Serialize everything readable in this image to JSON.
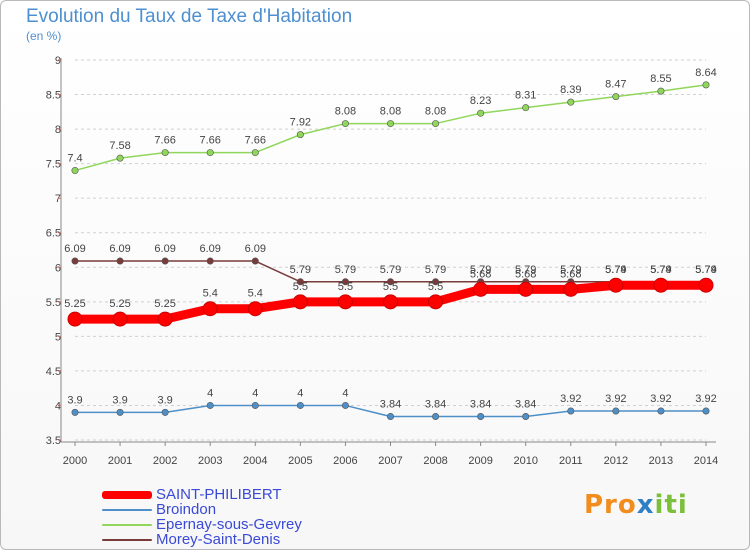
{
  "chart_data": {
    "type": "line",
    "title": "Evolution du Taux de Taxe d'Habitation",
    "subtitle": "(en %)",
    "x": [
      "2000",
      "2001",
      "2002",
      "2003",
      "2004",
      "2005",
      "2006",
      "2007",
      "2008",
      "2009",
      "2010",
      "2011",
      "2012",
      "2013",
      "2014"
    ],
    "ylim": [
      3.5,
      9
    ],
    "yticks": [
      "3.5",
      "4",
      "4.5",
      "5",
      "5.5",
      "6",
      "6.5",
      "7",
      "7.5",
      "8",
      "8.5",
      "9"
    ],
    "grid": "horizontal dashed",
    "legend_position": "bottom-left",
    "series": [
      {
        "name": "SAINT-PHILIBERT",
        "color": "#ff0000",
        "values": [
          5.25,
          5.25,
          5.25,
          5.4,
          5.4,
          5.5,
          5.5,
          5.5,
          5.5,
          5.68,
          5.68,
          5.68,
          5.74,
          5.74,
          5.74
        ],
        "labels": [
          "5.25",
          "5.25",
          "5.25",
          "5.4",
          "5.4",
          "5.5",
          "5.5",
          "5.5",
          "5.5",
          "5.68",
          "5.68",
          "5.68",
          "5.74",
          "5.74",
          "5.74"
        ]
      },
      {
        "name": "Broindon",
        "color": "#4f8fc8",
        "values": [
          3.9,
          3.9,
          3.9,
          4,
          4,
          4,
          4,
          3.84,
          3.84,
          3.84,
          3.84,
          3.92,
          3.92,
          3.92,
          3.92
        ],
        "labels": [
          "3.9",
          "3.9",
          "3.9",
          "4",
          "4",
          "4",
          "4",
          "3.84",
          "3.84",
          "3.84",
          "3.84",
          "3.92",
          "3.92",
          "3.92",
          "3.92"
        ]
      },
      {
        "name": "Epernay-sous-Gevrey",
        "color": "#8fd65a",
        "values": [
          7.4,
          7.58,
          7.66,
          7.66,
          7.66,
          7.92,
          8.08,
          8.08,
          8.08,
          8.23,
          8.31,
          8.39,
          8.47,
          8.55,
          8.64
        ],
        "labels": [
          "7.4",
          "7.58",
          "7.66",
          "7.66",
          "7.66",
          "7.92",
          "8.08",
          "8.08",
          "8.08",
          "8.23",
          "8.31",
          "8.39",
          "8.47",
          "8.55",
          "8.64"
        ]
      },
      {
        "name": "Morey-Saint-Denis",
        "color": "#7a3b3b",
        "values": [
          6.09,
          6.09,
          6.09,
          6.09,
          6.09,
          5.79,
          5.79,
          5.79,
          5.79,
          5.79,
          5.79,
          5.79,
          5.79,
          5.79,
          5.79
        ],
        "labels": [
          "6.09",
          "6.09",
          "6.09",
          "6.09",
          "6.09",
          "5.79",
          "5.79",
          "5.79",
          "5.79",
          "5.79",
          "5.79",
          "5.79",
          "5.79",
          "5.79",
          "5.79"
        ]
      }
    ]
  },
  "logo": {
    "p1": "Pro",
    "p2": "x",
    "p3": "iti"
  }
}
